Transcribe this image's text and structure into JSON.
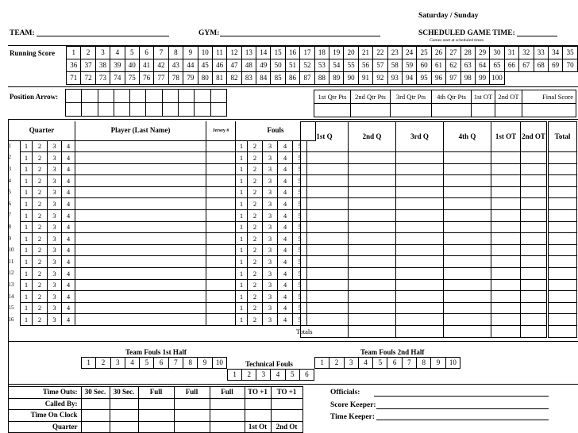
{
  "header": {
    "days": "Saturday   /   Sunday",
    "team_label": "TEAM:",
    "gym_label": "GYM:",
    "sched_label": "SCHEDULED GAME TIME:",
    "sched_note": "Games start at scheduled times"
  },
  "running_score": {
    "label": "Running Score",
    "row1": [
      "1",
      "2",
      "3",
      "4",
      "5",
      "6",
      "7",
      "8",
      "9",
      "10",
      "11",
      "12",
      "13",
      "14",
      "15",
      "16",
      "17",
      "18",
      "19",
      "20",
      "21",
      "22",
      "23",
      "24",
      "25",
      "26",
      "27",
      "28",
      "29",
      "30",
      "31",
      "32",
      "33",
      "34",
      "35"
    ],
    "row2": [
      "36",
      "37",
      "38",
      "39",
      "40",
      "41",
      "42",
      "43",
      "44",
      "45",
      "46",
      "47",
      "48",
      "49",
      "50",
      "51",
      "52",
      "53",
      "54",
      "55",
      "56",
      "57",
      "58",
      "59",
      "60",
      "61",
      "62",
      "63",
      "64",
      "65",
      "66",
      "67",
      "68",
      "69",
      "70"
    ],
    "row3": [
      "71",
      "72",
      "73",
      "74",
      "75",
      "76",
      "77",
      "78",
      "79",
      "80",
      "81",
      "82",
      "83",
      "84",
      "85",
      "86",
      "87",
      "88",
      "89",
      "90",
      "91",
      "92",
      "93",
      "94",
      "95",
      "96",
      "97",
      "98",
      "99",
      "100"
    ]
  },
  "position_arrow": {
    "label": "Position Arrow:"
  },
  "qtr_pts": [
    "1st Qtr Pts",
    "2nd Qtr Pts",
    "3rd Qtr Pts",
    "4th Qtr Pts",
    "1st OT",
    "2nd OT",
    "Final Score"
  ],
  "roster": {
    "quarter_header": "Quarter",
    "player_header": "Player (Last Name)",
    "jersey_header": "Jersey #",
    "fouls_header": "Fouls",
    "rows": [
      "1",
      "2",
      "3",
      "4",
      "5",
      "6",
      "7",
      "8",
      "9",
      "10",
      "11",
      "12",
      "13",
      "14",
      "15",
      "16"
    ],
    "quarters": [
      "1",
      "2",
      "3",
      "4"
    ],
    "fouls": [
      "1",
      "2",
      "3",
      "4",
      "5"
    ],
    "totals_label": "Totals"
  },
  "score_cols": [
    "1st Q",
    "2nd Q",
    "3rd Q",
    "4th Q",
    "1st OT",
    "2nd OT",
    "Total"
  ],
  "team_fouls": {
    "first_half_label": "Team Fouls 1st Half",
    "second_half_label": "Team Fouls 2nd Half",
    "technical_label": "Technical Fouls",
    "first_half": [
      "1",
      "2",
      "3",
      "4",
      "5",
      "6",
      "7",
      "8",
      "9",
      "10"
    ],
    "second_half": [
      "1",
      "2",
      "3",
      "4",
      "5",
      "6",
      "7",
      "8",
      "9",
      "10"
    ],
    "technical": [
      "1",
      "2",
      "3",
      "4",
      "5",
      "6"
    ]
  },
  "timeouts": {
    "labels": [
      "Time Outs:",
      "Called By:",
      "Time On Clock",
      "Quarter"
    ],
    "headers": [
      "30 Sec.",
      "30 Sec.",
      "Full",
      "Full",
      "Full",
      "TO +1",
      "TO +1"
    ],
    "ot_labels": [
      "1st Ot",
      "2nd Ot"
    ]
  },
  "officials": {
    "officials_label": "Officials:",
    "score_keeper_label": "Score Keeper:",
    "time_keeper_label": "Time Keeper:"
  }
}
